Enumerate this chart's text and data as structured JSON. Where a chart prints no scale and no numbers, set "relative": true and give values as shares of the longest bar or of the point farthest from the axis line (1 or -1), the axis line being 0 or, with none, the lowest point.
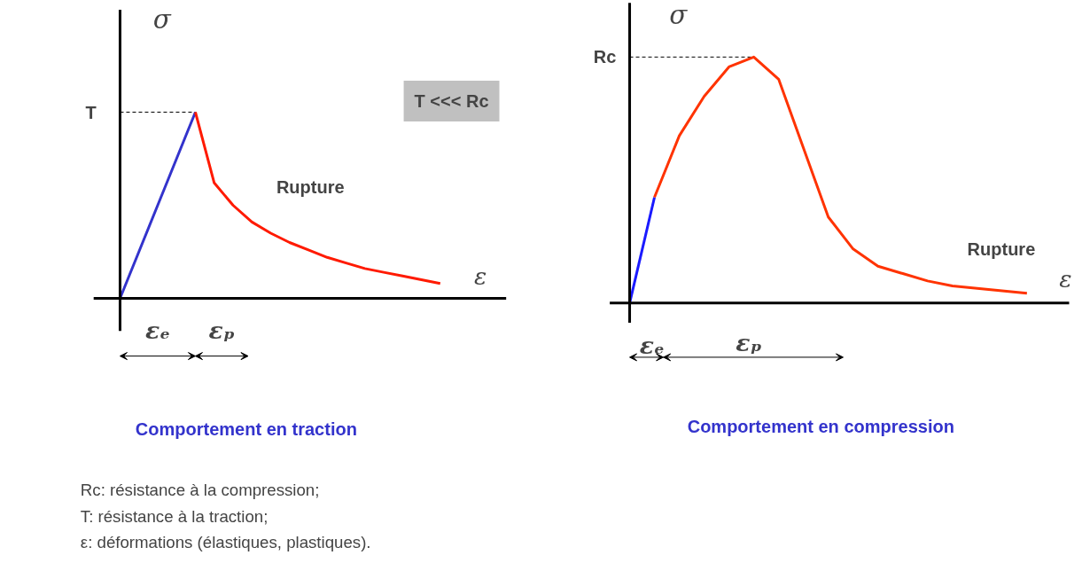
{
  "chart_data": [
    {
      "type": "line",
      "title": "Comportement en traction",
      "xlabel": "ε",
      "ylabel": "σ",
      "relative": true,
      "categories": [
        null,
        null,
        null,
        null,
        null,
        null,
        null,
        null,
        null,
        null,
        null,
        null,
        null,
        null,
        null,
        null,
        null,
        null
      ],
      "series": [
        {
          "color": "#3333cc",
          "values": [
            0,
            0.25,
            0.5,
            0.75,
            1,
            null,
            null,
            null,
            null,
            null,
            null,
            null,
            null,
            null,
            null,
            null,
            null,
            null
          ]
        },
        {
          "color": "#ff1a00",
          "values": [
            null,
            null,
            null,
            null,
            1,
            0.62,
            0.5,
            0.41,
            0.35,
            0.3,
            0.26,
            0.22,
            0.19,
            0.16,
            0.14,
            0.12,
            0.1,
            0.08
          ]
        }
      ],
      "ref_lines": [
        {
          "axis": "y",
          "value": 1,
          "label": "T",
          "line_style": "dashed"
        }
      ],
      "annotations": [
        "Rupture",
        "εₑ",
        "εₚ",
        "T <<< Rc",
        "Rc: résistance à la compression;",
        "T: résistance à la traction;",
        "ε: déformations (élastiques, plastiques)."
      ]
    },
    {
      "type": "line",
      "title": "Comportement en compression",
      "xlabel": "ε",
      "ylabel": "σ",
      "relative": true,
      "categories": [
        null,
        null,
        null,
        null,
        null,
        null,
        null,
        null,
        null,
        null,
        null,
        null,
        null,
        null,
        null,
        null,
        null
      ],
      "series": [
        {
          "color": "#1a1aff",
          "values": [
            0,
            0.43,
            null,
            null,
            null,
            null,
            null,
            null,
            null,
            null,
            null,
            null,
            null,
            null,
            null,
            null,
            null
          ]
        },
        {
          "color": "#ff3300",
          "values": [
            null,
            0.43,
            0.68,
            0.84,
            0.96,
            1,
            0.91,
            0.63,
            0.35,
            0.22,
            0.15,
            0.12,
            0.09,
            0.07,
            0.06,
            0.05,
            0.04
          ]
        }
      ],
      "ref_lines": [
        {
          "axis": "y",
          "value": 1,
          "label": "Rc",
          "line_style": "dashed"
        }
      ],
      "annotations": [
        "Rupture",
        "εₑ",
        "εₚ"
      ]
    }
  ]
}
